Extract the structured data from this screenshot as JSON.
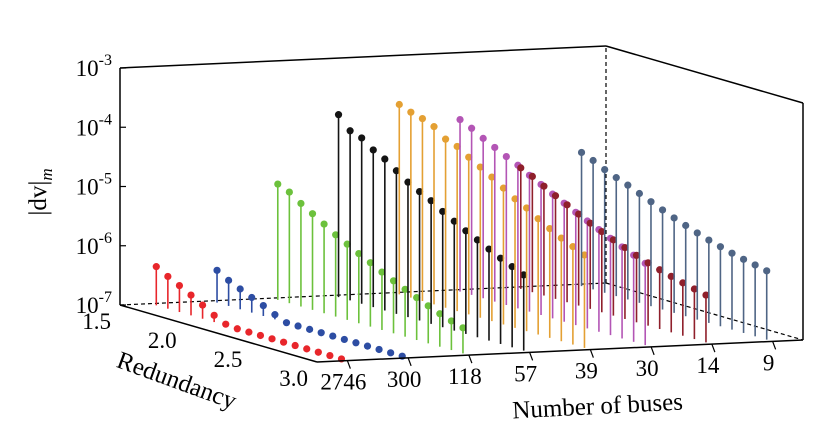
{
  "chart_data": {
    "type": "3d-stem",
    "ylabel": "|dv|m",
    "ylabel_main": "|dv|",
    "ylabel_sub": "m",
    "y_scale": "log",
    "ylim": [
      1e-07,
      0.001
    ],
    "y_ticks": [
      {
        "base": "10",
        "exp": "-7"
      },
      {
        "base": "10",
        "exp": "-6"
      },
      {
        "base": "10",
        "exp": "-5"
      },
      {
        "base": "10",
        "exp": "-4"
      },
      {
        "base": "10",
        "exp": "-3"
      }
    ],
    "x_axis": {
      "label": "Number of buses",
      "ticks": [
        "2746",
        "300",
        "118",
        "57",
        "39",
        "30",
        "14",
        "9"
      ]
    },
    "z_axis": {
      "label": "Redundancy",
      "ticks": [
        "1.5",
        "2.0",
        "2.5",
        "3.0"
      ],
      "range": [
        1.5,
        3.0
      ]
    },
    "series": [
      {
        "system": "2746",
        "color": "#e8262b",
        "values": [
          4.5e-07,
          3.5e-07,
          2.8e-07,
          2.2e-07,
          1.7e-07,
          1.3e-07,
          1.05e-07,
          8e-08,
          6.5e-08,
          5.3e-08,
          4.4e-08,
          3.7e-08,
          3.1e-08,
          2.7e-08,
          2.3e-08,
          2e-08,
          1.8e-08
        ]
      },
      {
        "system": "300",
        "color": "#2d4da3",
        "values": [
          3.5e-07,
          2.7e-07,
          2.2e-07,
          1.8e-07,
          1.5e-07,
          1.2e-07,
          1e-07,
          8.5e-08,
          7e-08,
          6e-08,
          5.2e-08,
          4.5e-08,
          3.9e-08,
          3.4e-08,
          3e-08,
          2.7e-08,
          2.4e-08
        ]
      },
      {
        "system": "118",
        "color": "#6cc13c",
        "values": [
          9e-06,
          7.5e-06,
          5.5e-06,
          4.2e-06,
          3.2e-06,
          2.4e-06,
          1.9e-06,
          1.5e-06,
          1.2e-06,
          9.5e-07,
          7.7e-07,
          6.3e-07,
          5.2e-07,
          4.3e-07,
          3.6e-07,
          3.1e-07,
          2.7e-07
        ]
      },
      {
        "system": "57",
        "color": "#141414",
        "values": [
          0.00012,
          7.3e-05,
          6.3e-05,
          4.5e-05,
          3.6e-05,
          2.6e-05,
          1.9e-05,
          1.5e-05,
          1.2e-05,
          9e-06,
          7e-06,
          5.5e-06,
          4.4e-06,
          3.5e-06,
          2.8e-06,
          2.3e-06,
          1.9e-06
        ]
      },
      {
        "system": "39",
        "color": "#e4a033",
        "values": [
          0.00016,
          0.000135,
          0.00012,
          0.0001,
          7e-05,
          6e-05,
          4.5e-05,
          3.5e-05,
          2.7e-05,
          2e-05,
          1.5e-05,
          1.2e-05,
          9e-06,
          7e-06,
          5.5e-06,
          4.5e-06,
          3.7e-06
        ]
      },
      {
        "system": "30",
        "color": "#b355b5",
        "values": [
          8e-05,
          6.5e-05,
          5e-05,
          4e-05,
          3.2e-05,
          2.6e-05,
          2e-05,
          1.6e-05,
          1.25e-05,
          1e-05,
          8e-06,
          6.5e-06,
          5.3e-06,
          4.3e-06,
          3.5e-06,
          2.9e-06,
          2.4e-06
        ]
      },
      {
        "system": "14",
        "color": "#8f1f2b",
        "values": [
          1.1e-05,
          9e-06,
          7e-06,
          5.5e-06,
          4.4e-06,
          3.5e-06,
          2.8e-06,
          2.3e-06,
          1.9e-06,
          1.6e-06,
          1.35e-06,
          1.15e-06,
          1e-06,
          8.8e-07,
          7.8e-07,
          7e-07,
          6.3e-07
        ]
      },
      {
        "system": "9",
        "color": "#4f6585",
        "values": [
          1.8e-05,
          1.5e-05,
          1.2e-05,
          1e-05,
          8.5e-06,
          7e-06,
          5.8e-06,
          4.8e-06,
          4e-06,
          3.4e-06,
          2.9e-06,
          2.5e-06,
          2.2e-06,
          1.95e-06,
          1.75e-06,
          1.6e-06,
          1.45e-06
        ]
      }
    ]
  }
}
